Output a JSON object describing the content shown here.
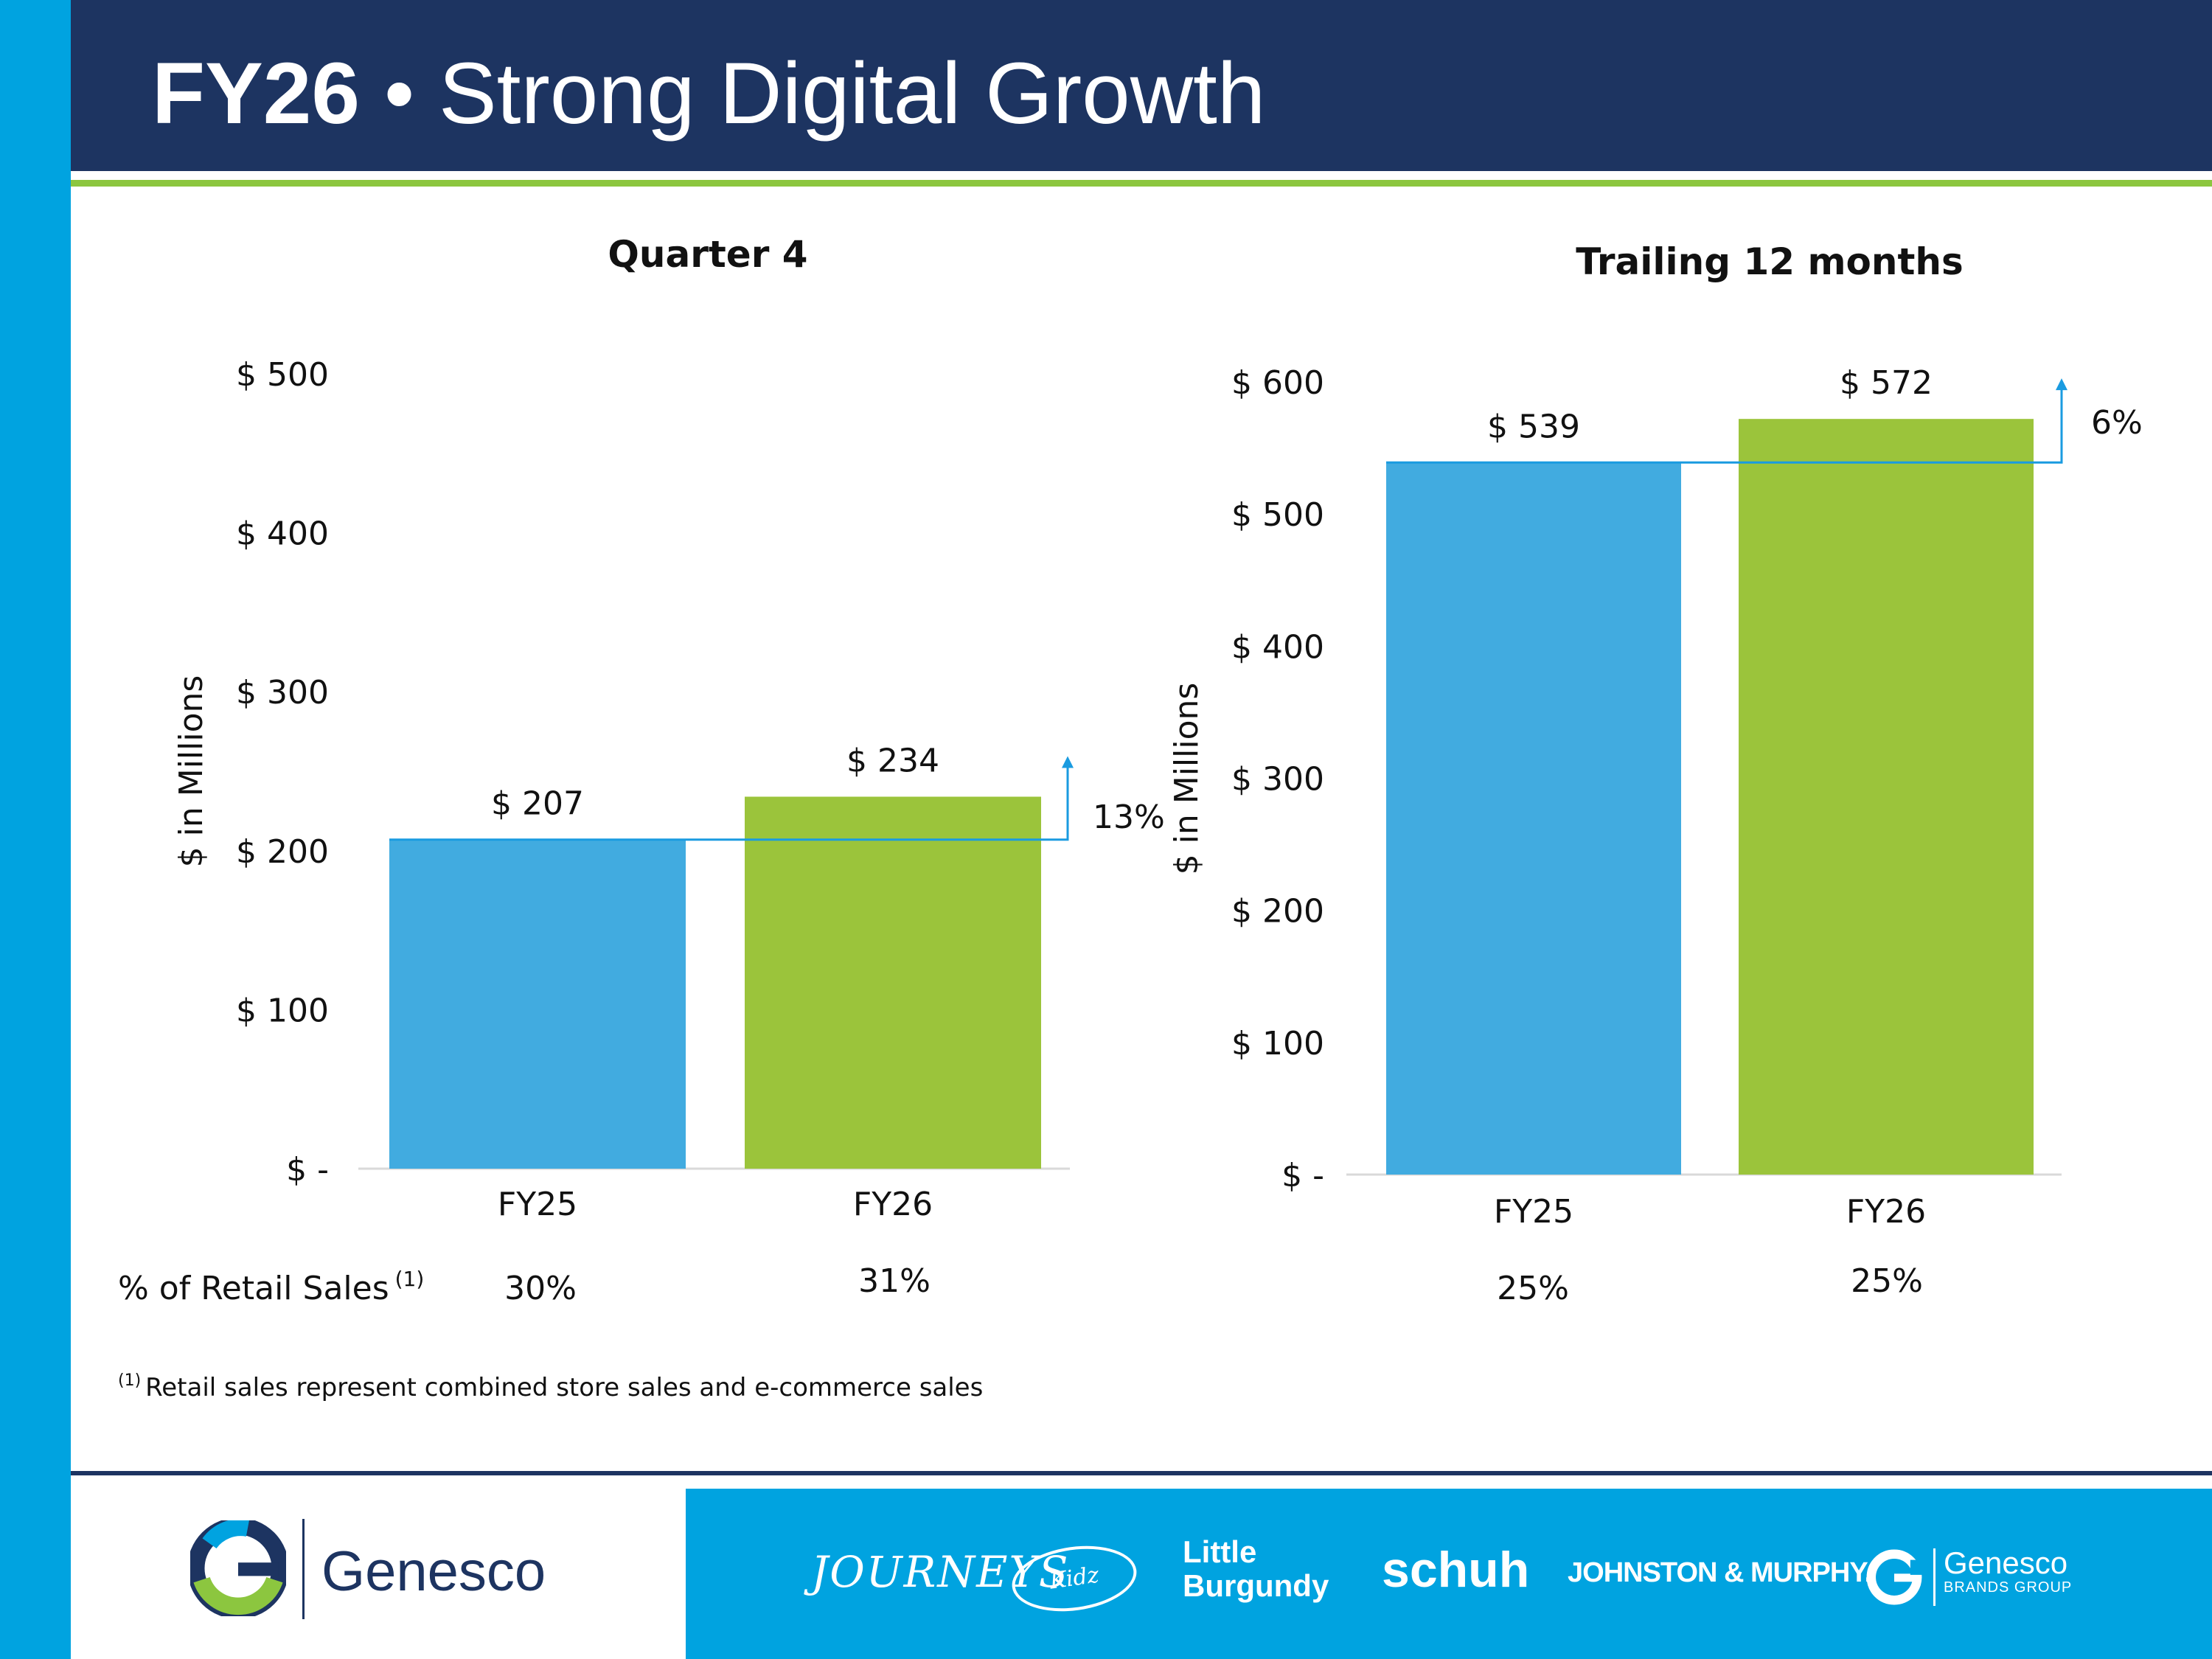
{
  "header": {
    "title_year": "FY26",
    "title_separator": "•",
    "title_text": "Strong Digital Growth"
  },
  "colors": {
    "navy": "#1d3461",
    "cyan": "#00a3e0",
    "bar_fy25": "#41abe0",
    "bar_fy26": "#9bc43b",
    "green_rule": "#8cc63f",
    "growth_arrow": "#1a9be0"
  },
  "chart_data": [
    {
      "type": "bar",
      "title": "Quarter 4",
      "categories": [
        "FY25",
        "FY26"
      ],
      "values": [
        207,
        234
      ],
      "data_labels": [
        "$ 207",
        "$ 234"
      ],
      "ylabel": "$ in Millions",
      "ylim": [
        0,
        500
      ],
      "yticks": [
        {
          "value": 0,
          "label": "$ -"
        },
        {
          "value": 100,
          "label": "$ 100"
        },
        {
          "value": 200,
          "label": "$ 200"
        },
        {
          "value": 300,
          "label": "$ 300"
        },
        {
          "value": 400,
          "label": "$ 400"
        },
        {
          "value": 500,
          "label": "$ 500"
        }
      ],
      "growth_label": "13%",
      "pct_of_retail_sales": [
        "30%",
        "31%"
      ],
      "grid": false
    },
    {
      "type": "bar",
      "title": "Trailing 12 months",
      "categories": [
        "FY25",
        "FY26"
      ],
      "values": [
        539,
        572
      ],
      "data_labels": [
        "$ 539",
        "$ 572"
      ],
      "ylabel": "$ in Millions",
      "ylim": [
        0,
        600
      ],
      "yticks": [
        {
          "value": 0,
          "label": "$ -"
        },
        {
          "value": 100,
          "label": "$ 100"
        },
        {
          "value": 200,
          "label": "$ 200"
        },
        {
          "value": 300,
          "label": "$ 300"
        },
        {
          "value": 400,
          "label": "$ 400"
        },
        {
          "value": 500,
          "label": "$ 500"
        },
        {
          "value": 600,
          "label": "$ 600"
        }
      ],
      "growth_label": "6%",
      "pct_of_retail_sales": [
        "25%",
        "25%"
      ],
      "grid": false
    }
  ],
  "row": {
    "label": "% of Retail Sales",
    "label_marker": "(1)"
  },
  "footnote": {
    "marker": "(1)",
    "text": "Retail sales represent combined store sales and e-commerce sales"
  },
  "footer": {
    "logo_text": "Genesco",
    "brands": {
      "journeys": "JOURNEYS",
      "journeys_kidz": "Kidz",
      "little_burgundy_line1": "Little",
      "little_burgundy_line2": "Burgundy",
      "schuh": "schuh",
      "johnston_murphy": "JOHNSTON & MURPHY.",
      "gbg_name": "Genesco",
      "gbg_sub": "BRANDS GROUP"
    }
  }
}
